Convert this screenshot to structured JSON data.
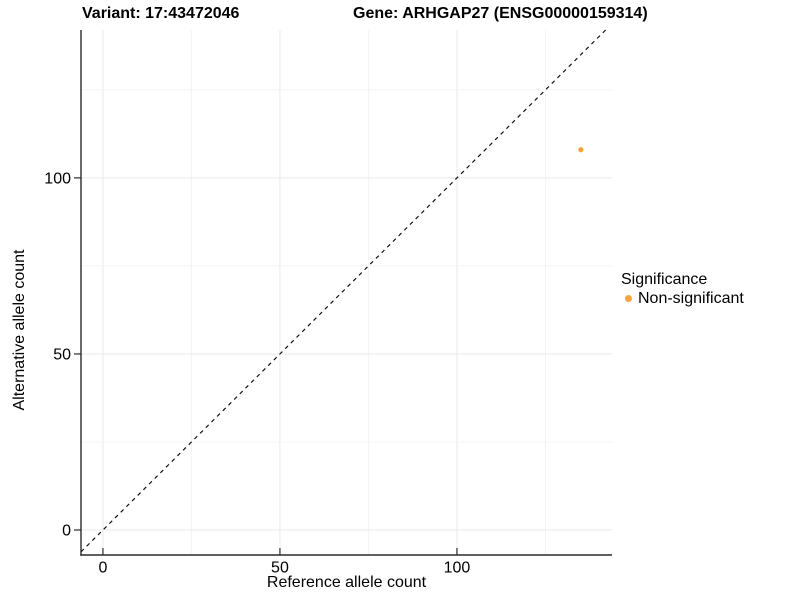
{
  "chart_data": {
    "type": "scatter",
    "title_left": "Variant: 17:43472046",
    "title_right": "Gene: ARHGAP27 (ENSG00000159314)",
    "xlabel": "Reference allele count",
    "ylabel": "Alternative allele count",
    "xlim": [
      -6.2,
      143.8
    ],
    "ylim": [
      -7.1,
      142.0
    ],
    "xticks": [
      0,
      50,
      100
    ],
    "yticks": [
      0,
      50,
      100
    ],
    "grid_step": 25,
    "grid": true,
    "points": [
      {
        "x": 135,
        "y": 108,
        "series": "Non-significant"
      }
    ],
    "identity_line": {
      "equation": "y = x",
      "style": "dashed",
      "color": "#111111"
    },
    "legend": {
      "title": "Significance",
      "position": "right",
      "entries": [
        {
          "label": "Non-significant",
          "color": "#F9A43B"
        }
      ]
    },
    "colors": {
      "point_non_significant": "#F9A43B",
      "grid_major": "#E9E9E9",
      "grid_minor": "#F4F4F4",
      "axis_line": "#2B2B2B",
      "tick_text": "#000000"
    }
  }
}
